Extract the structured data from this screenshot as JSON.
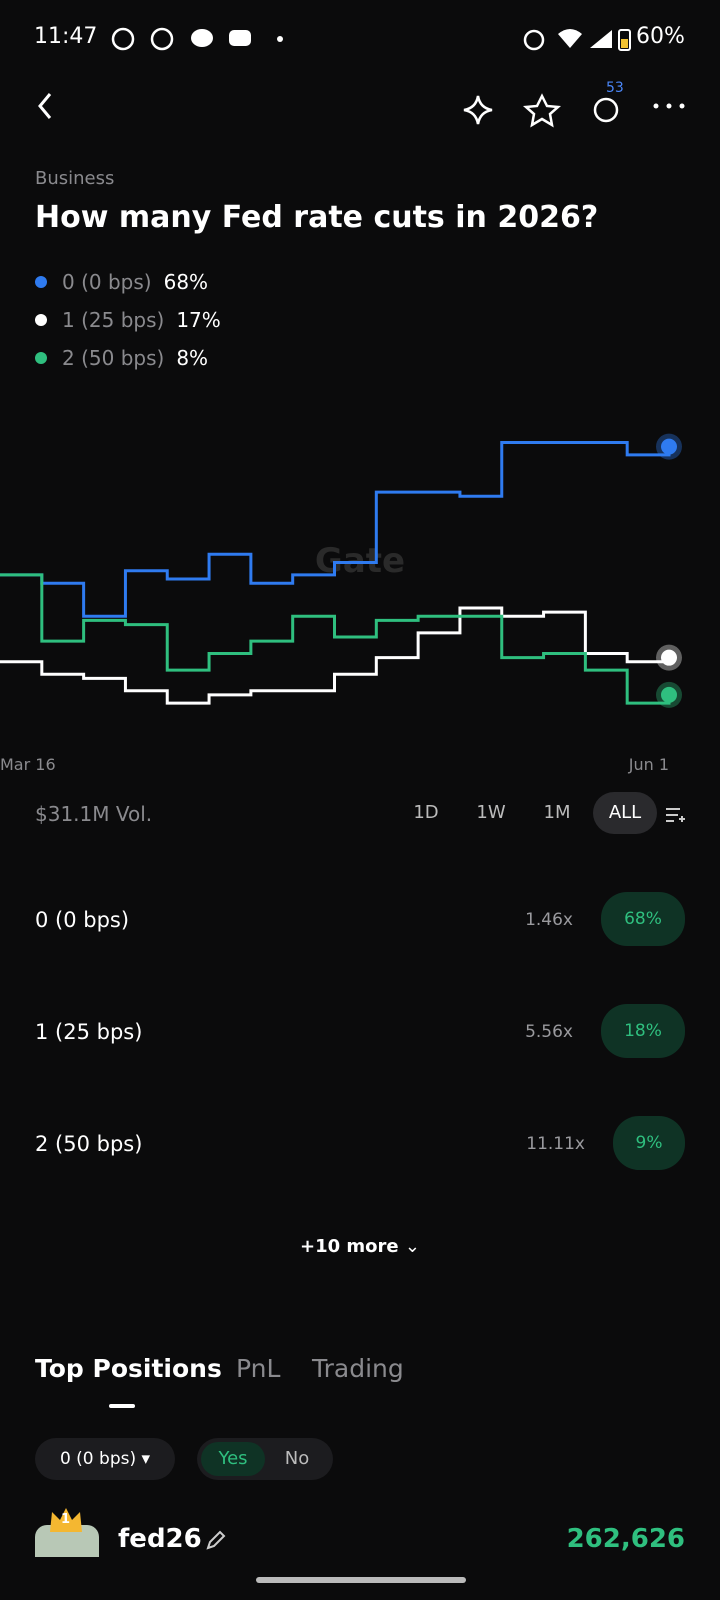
{
  "status_bar": {
    "time": "11:47",
    "battery": "60%"
  },
  "header": {
    "notifications": "53"
  },
  "market": {
    "category": "Business",
    "title": "How many Fed rate cuts in 2026?",
    "volume": "$31.1M Vol."
  },
  "chart_data": {
    "type": "line",
    "watermark": "Gate",
    "categories": [
      "Mar 16",
      null,
      null,
      null,
      null,
      null,
      null,
      null,
      null,
      null,
      null,
      null,
      null,
      null,
      null,
      null,
      "Jun 1"
    ],
    "ylim": [
      0,
      80
    ],
    "series": [
      {
        "name": "0 (0 bps)",
        "legend_value": "68%",
        "color": "#2f7bf0",
        "values": [
          37,
          35,
          27,
          38,
          36,
          42,
          35,
          37,
          40,
          57,
          57,
          56,
          69,
          69,
          69,
          66,
          68
        ]
      },
      {
        "name": "1 (25 bps)",
        "legend_value": "17%",
        "color": "#ffffff",
        "values": [
          16,
          13,
          12,
          9,
          6,
          8,
          9,
          9,
          13,
          17,
          23,
          29,
          27,
          28,
          18,
          16,
          17
        ]
      },
      {
        "name": "2 (50 bps)",
        "legend_value": "8%",
        "color": "#2fbf7f",
        "values": [
          37,
          21,
          26,
          25,
          14,
          18,
          21,
          27,
          22,
          26,
          27,
          27,
          17,
          18,
          14,
          6,
          8
        ]
      }
    ]
  },
  "time_ranges": {
    "options": [
      "1D",
      "1W",
      "1M",
      "ALL"
    ],
    "selected_index": 3
  },
  "outcomes": [
    {
      "name": "0 (0 bps)",
      "multiplier": "1.46x",
      "price": "68%"
    },
    {
      "name": "1 (25 bps)",
      "multiplier": "5.56x",
      "price": "18%"
    },
    {
      "name": "2 (50 bps)",
      "multiplier": "11.11x",
      "price": "9%"
    }
  ],
  "more": "+10 more",
  "tabs": {
    "items": [
      "Top Positions",
      "PnL",
      "Trading"
    ],
    "active_index": 0
  },
  "filter": {
    "outcome": "0 (0 bps)",
    "sides": [
      "Yes",
      "No"
    ],
    "active_side": 0
  },
  "positions": [
    {
      "rank": "1",
      "user": "fed26",
      "amount": "262,626"
    }
  ]
}
